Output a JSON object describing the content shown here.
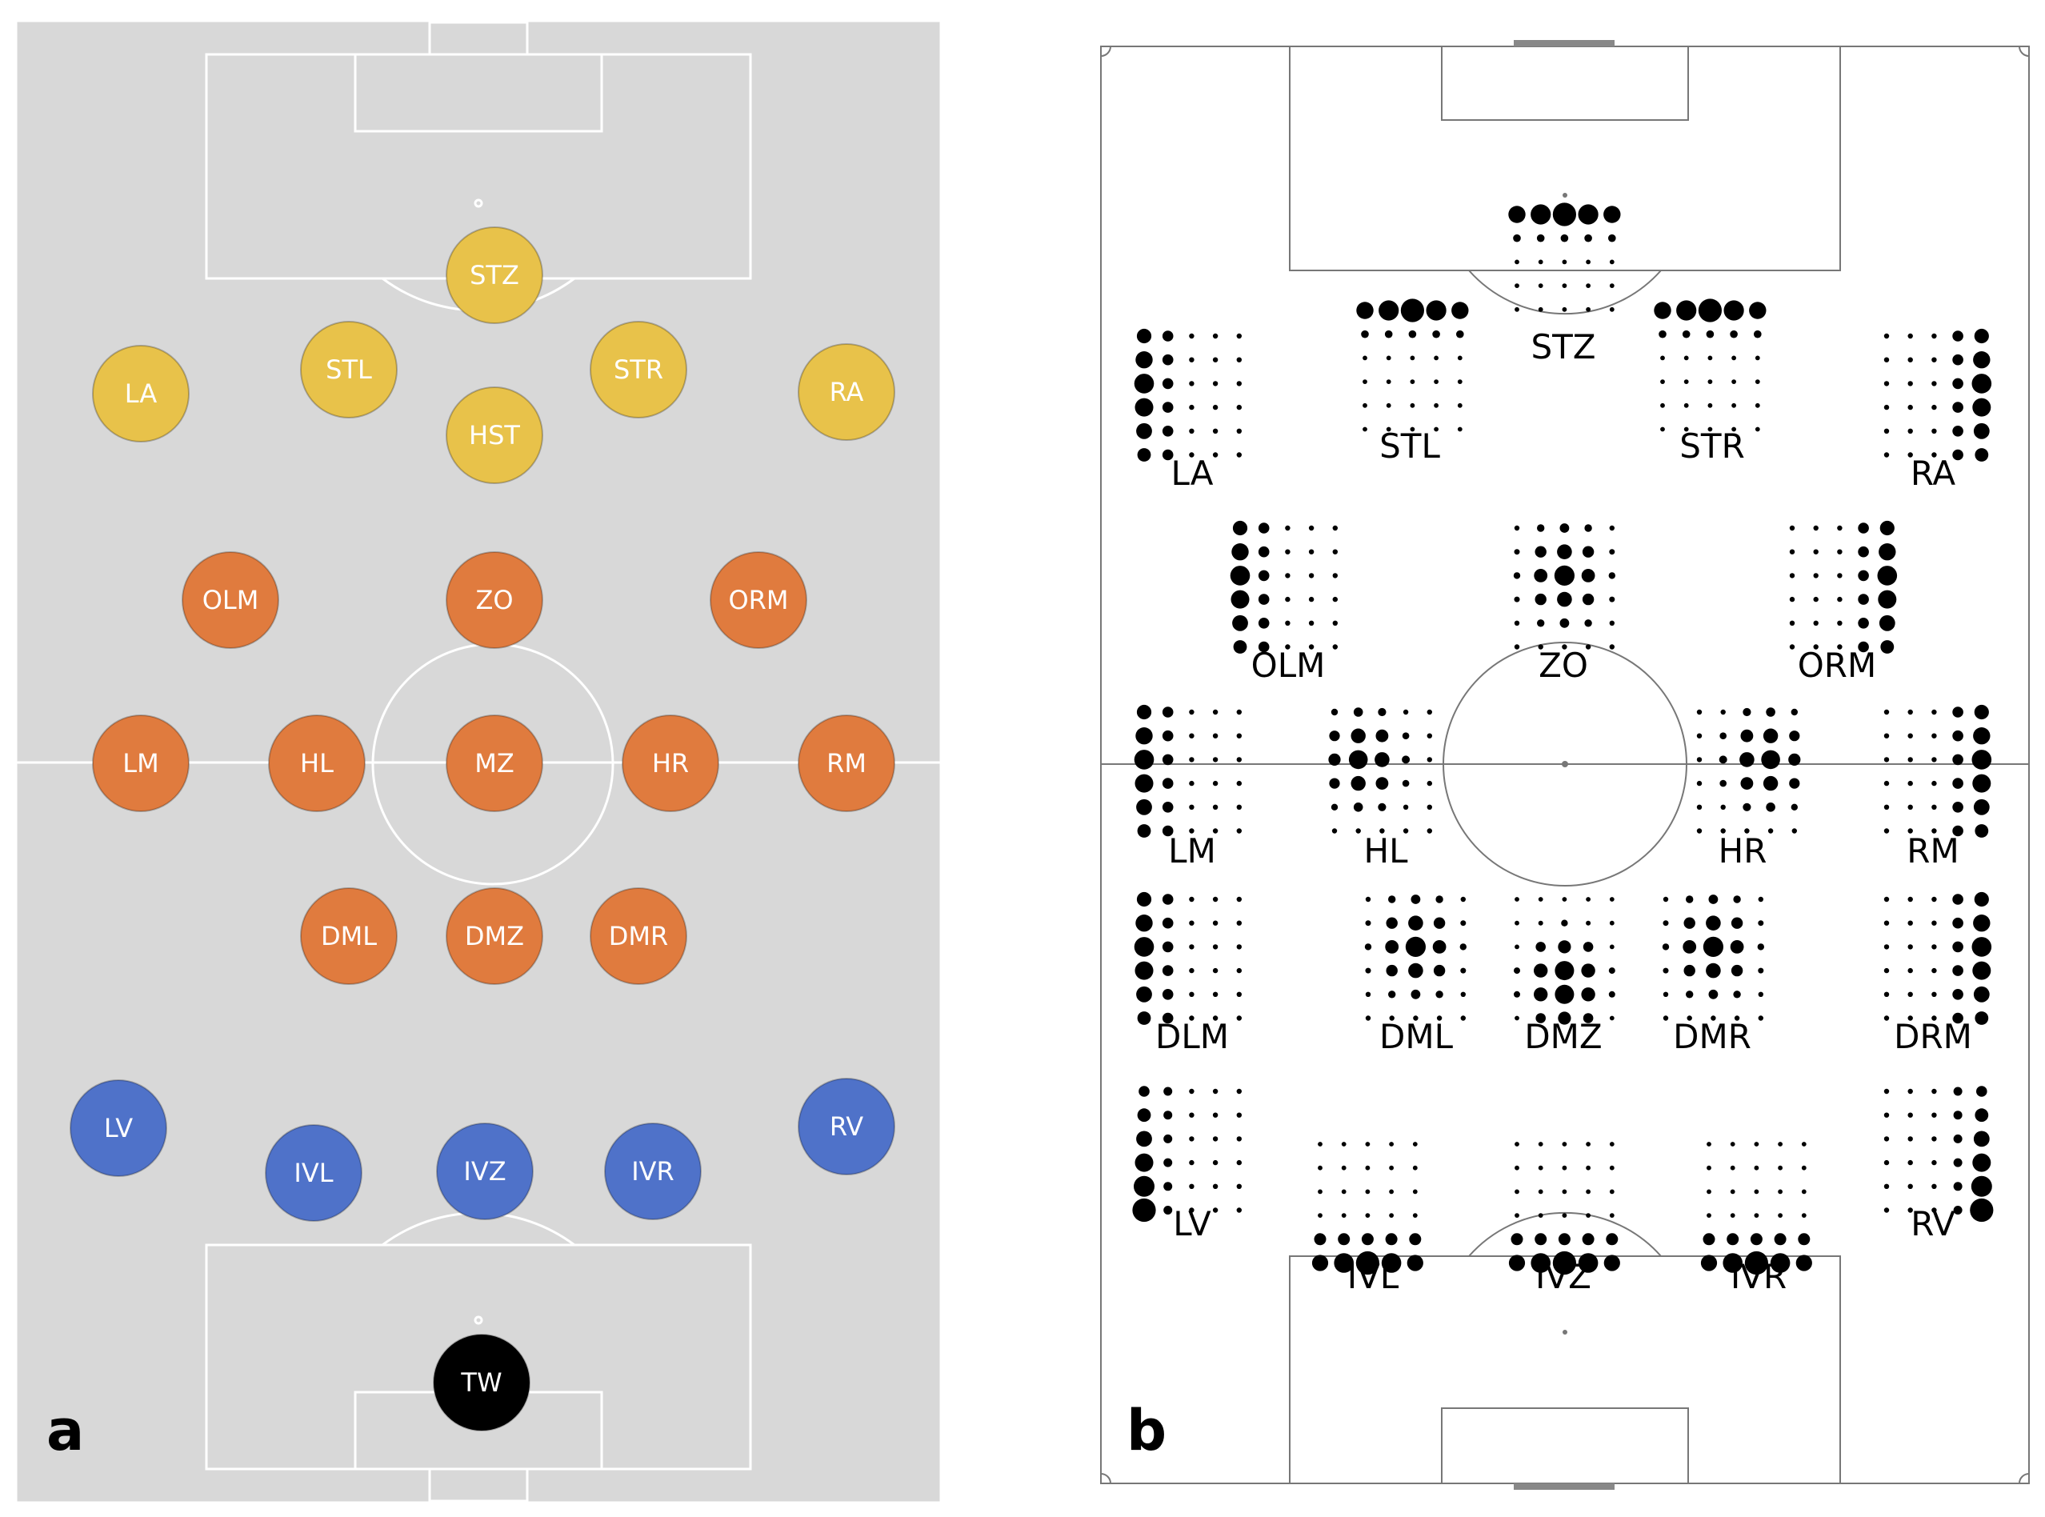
{
  "panel_a": {
    "letter": "a",
    "colors": {
      "pitch": "#d8d8d8",
      "lines": "#ffffff",
      "attack": "#e8c24a",
      "midfield": "#e07b3e",
      "defense": "#4f72c9",
      "goalkeeper": "#000000"
    },
    "positions": [
      {
        "label": "STZ",
        "group": "attack"
      },
      {
        "label": "LA",
        "group": "attack"
      },
      {
        "label": "STL",
        "group": "attack"
      },
      {
        "label": "STR",
        "group": "attack"
      },
      {
        "label": "RA",
        "group": "attack"
      },
      {
        "label": "HST",
        "group": "attack"
      },
      {
        "label": "OLM",
        "group": "midfield"
      },
      {
        "label": "ZO",
        "group": "midfield"
      },
      {
        "label": "ORM",
        "group": "midfield"
      },
      {
        "label": "LM",
        "group": "midfield"
      },
      {
        "label": "HL",
        "group": "midfield"
      },
      {
        "label": "MZ",
        "group": "midfield"
      },
      {
        "label": "HR",
        "group": "midfield"
      },
      {
        "label": "RM",
        "group": "midfield"
      },
      {
        "label": "DML",
        "group": "midfield"
      },
      {
        "label": "DMZ",
        "group": "midfield"
      },
      {
        "label": "DMR",
        "group": "midfield"
      },
      {
        "label": "LV",
        "group": "defense"
      },
      {
        "label": "IVL",
        "group": "defense"
      },
      {
        "label": "IVZ",
        "group": "defense"
      },
      {
        "label": "IVR",
        "group": "defense"
      },
      {
        "label": "RV",
        "group": "defense"
      },
      {
        "label": "TW",
        "group": "goalkeeper"
      }
    ]
  },
  "panel_b": {
    "letter": "b",
    "colors": {
      "pitch": "#ffffff",
      "lines": "#777777",
      "dots": "#000000",
      "goal": "#888888"
    },
    "positions": [
      {
        "label": "STZ"
      },
      {
        "label": "STL"
      },
      {
        "label": "STR"
      },
      {
        "label": "LA"
      },
      {
        "label": "RA"
      },
      {
        "label": "OLM"
      },
      {
        "label": "ZO"
      },
      {
        "label": "ORM"
      },
      {
        "label": "LM"
      },
      {
        "label": "HL"
      },
      {
        "label": "HR"
      },
      {
        "label": "RM"
      },
      {
        "label": "DLM"
      },
      {
        "label": "DML"
      },
      {
        "label": "DMZ"
      },
      {
        "label": "DMR"
      },
      {
        "label": "DRM"
      },
      {
        "label": "LV"
      },
      {
        "label": "IVL"
      },
      {
        "label": "IVZ"
      },
      {
        "label": "IVR"
      },
      {
        "label": "RV"
      }
    ]
  }
}
